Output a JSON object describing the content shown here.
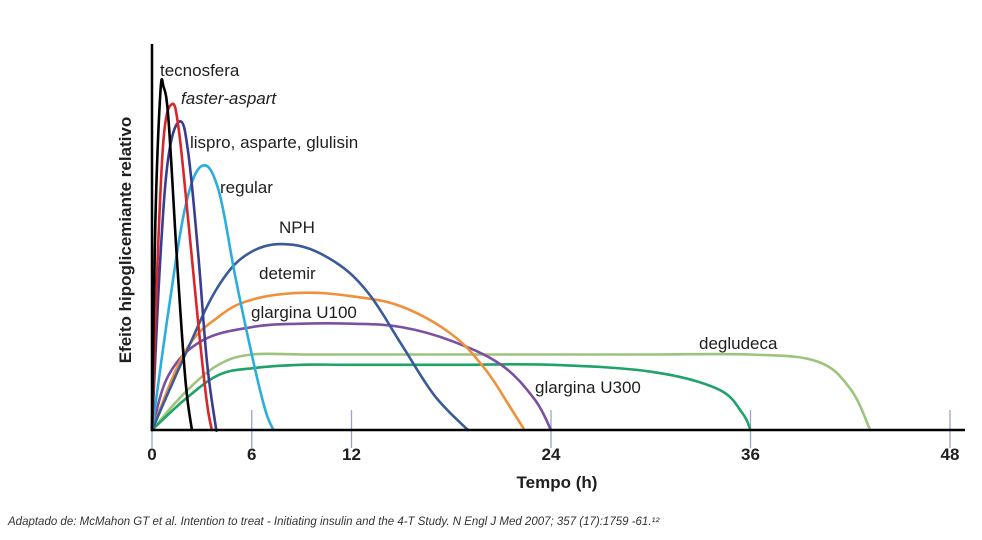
{
  "chart_data": {
    "type": "line",
    "xlabel": "Tempo (h)",
    "ylabel": "Efeito hipoglicemiante relativo",
    "xlim": [
      0,
      48
    ],
    "ylim": [
      0,
      1
    ],
    "xticks": [
      0,
      6,
      12,
      24,
      36,
      48
    ],
    "series": [
      {
        "name": "tecnosfera",
        "color": "#000000",
        "italic": false,
        "x": [
          0,
          0.2,
          0.5,
          0.7,
          1.0,
          1.5,
          2.0,
          2.4
        ],
        "y": [
          0,
          0.6,
          0.98,
          1.0,
          0.9,
          0.5,
          0.15,
          0
        ]
      },
      {
        "name": "faster-aspart",
        "color": "#d9262b",
        "italic": true,
        "x": [
          0,
          0.3,
          0.7,
          1.2,
          1.6,
          2.2,
          2.8,
          3.3,
          3.6
        ],
        "y": [
          0,
          0.45,
          0.85,
          0.95,
          0.88,
          0.6,
          0.3,
          0.08,
          0
        ]
      },
      {
        "name": "lispro, asparte, glulisin",
        "color": "#3a3d8f",
        "italic": false,
        "x": [
          0,
          0.5,
          1.0,
          1.7,
          2.2,
          2.8,
          3.3,
          3.8,
          3.9
        ],
        "y": [
          0,
          0.5,
          0.8,
          0.9,
          0.8,
          0.5,
          0.2,
          0.02,
          0
        ]
      },
      {
        "name": "regular",
        "color": "#2aaee0",
        "italic": false,
        "x": [
          0,
          1.0,
          2.0,
          3.0,
          4.0,
          5.0,
          6.0,
          6.8,
          7.3
        ],
        "y": [
          0,
          0.35,
          0.65,
          0.77,
          0.7,
          0.45,
          0.22,
          0.06,
          0
        ]
      },
      {
        "name": "NPH",
        "color": "#3a5a9a",
        "italic": false,
        "x": [
          0,
          2,
          4,
          6,
          8.5,
          11,
          13,
          15,
          17,
          19
        ],
        "y": [
          0,
          0.22,
          0.42,
          0.52,
          0.54,
          0.49,
          0.4,
          0.25,
          0.1,
          0
        ]
      },
      {
        "name": "detemir",
        "color": "#f0913a",
        "italic": false,
        "x": [
          0,
          2,
          4,
          6,
          9,
          12,
          15,
          18,
          20,
          21.5,
          22.4
        ],
        "y": [
          0,
          0.23,
          0.33,
          0.38,
          0.4,
          0.39,
          0.36,
          0.28,
          0.18,
          0.07,
          0
        ]
      },
      {
        "name": "glargina U100",
        "color": "#7d4fa1",
        "italic": false,
        "x": [
          0,
          1,
          3,
          6,
          9,
          12,
          15,
          18,
          21,
          23,
          24
        ],
        "y": [
          0,
          0.16,
          0.26,
          0.3,
          0.31,
          0.31,
          0.3,
          0.26,
          0.19,
          0.09,
          0
        ]
      },
      {
        "name": "glargina U300",
        "color": "#1fa36a",
        "italic": false,
        "x": [
          0,
          2,
          4,
          6,
          9,
          12,
          18,
          24,
          30,
          34,
          35.5,
          36
        ],
        "y": [
          0,
          0.09,
          0.16,
          0.18,
          0.19,
          0.19,
          0.19,
          0.19,
          0.17,
          0.12,
          0.05,
          0
        ]
      },
      {
        "name": "degludeca",
        "color": "#9cc47d",
        "italic": false,
        "x": [
          0,
          2,
          4,
          6,
          9,
          12,
          18,
          24,
          30,
          36,
          40,
          42,
          43.2
        ],
        "y": [
          0,
          0.11,
          0.19,
          0.22,
          0.22,
          0.22,
          0.22,
          0.22,
          0.22,
          0.22,
          0.2,
          0.12,
          0
        ]
      }
    ]
  },
  "source": "Adaptado de: McMahon GT et al. Intention to treat - Initiating insulin and the 4-T Study. N Engl J Med 2007; 357 (17):1759 -61.¹²"
}
